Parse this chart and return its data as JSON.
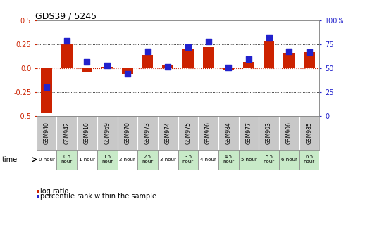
{
  "title": "GDS39 / 5245",
  "samples": [
    "GSM940",
    "GSM942",
    "GSM910",
    "GSM969",
    "GSM970",
    "GSM973",
    "GSM974",
    "GSM975",
    "GSM976",
    "GSM984",
    "GSM977",
    "GSM903",
    "GSM906",
    "GSM985"
  ],
  "time_labels": [
    "0 hour",
    "0.5\nhour",
    "1 hour",
    "1.5\nhour",
    "2 hour",
    "2.5\nhour",
    "3 hour",
    "3.5\nhour",
    "4 hour",
    "4.5\nhour",
    "5 hour",
    "5.5\nhour",
    "6 hour",
    "6.5\nhour"
  ],
  "time_bg_colors": [
    "#ffffff",
    "#c8eac8",
    "#ffffff",
    "#c8eac8",
    "#ffffff",
    "#c8eac8",
    "#ffffff",
    "#c8eac8",
    "#ffffff",
    "#c8eac8",
    "#c8eac8",
    "#c8eac8",
    "#c8eac8",
    "#c8eac8"
  ],
  "log_ratio": [
    -0.47,
    0.25,
    -0.04,
    0.02,
    -0.06,
    0.14,
    0.03,
    0.2,
    0.22,
    -0.01,
    0.07,
    0.29,
    0.16,
    0.17
  ],
  "percentile": [
    30,
    79,
    57,
    53,
    44,
    68,
    52,
    72,
    78,
    51,
    60,
    82,
    68,
    67
  ],
  "ylim_left": [
    -0.5,
    0.5
  ],
  "ylim_right": [
    0,
    100
  ],
  "yticks_left": [
    -0.5,
    -0.25,
    0.0,
    0.25,
    0.5
  ],
  "yticks_right": [
    0,
    25,
    50,
    75,
    100
  ],
  "bar_color": "#cc2200",
  "dot_color": "#2222cc",
  "dot_size": 28,
  "zero_line_color": "#cc2200",
  "sample_bg_color": "#c8c8c8",
  "legend_log_ratio": "log ratio",
  "legend_percentile": "percentile rank within the sample",
  "bar_width": 0.55
}
